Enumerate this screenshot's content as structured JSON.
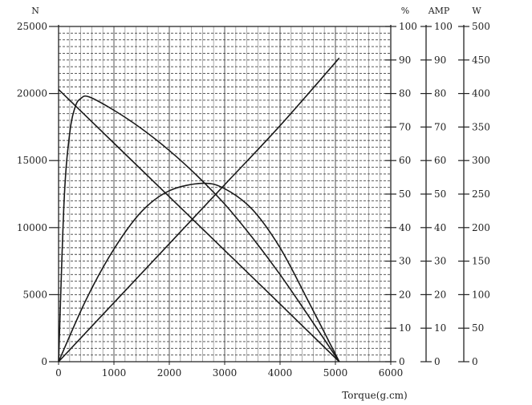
{
  "chart_data": {
    "type": "line",
    "x": {
      "label": "Torque(g.cm)",
      "range": [
        0,
        6000
      ],
      "ticks": [
        "0",
        "1000",
        "2000",
        "3000",
        "4000",
        "5000",
        "6000"
      ]
    },
    "left_axis": {
      "unit": "N",
      "range": [
        0,
        25000
      ],
      "ticks": [
        "0",
        "5000",
        "10000",
        "15000",
        "20000",
        "25000"
      ]
    },
    "right_axes": [
      {
        "unit": "%",
        "range": [
          0,
          100
        ],
        "ticks": [
          "0",
          "10",
          "20",
          "30",
          "40",
          "50",
          "60",
          "70",
          "80",
          "90",
          "100"
        ]
      },
      {
        "unit": "AMP",
        "range": [
          0,
          100
        ],
        "ticks": [
          "0",
          "10",
          "20",
          "30",
          "40",
          "50",
          "60",
          "70",
          "80",
          "90",
          "100"
        ]
      },
      {
        "unit": "W",
        "range": [
          0,
          500
        ],
        "ticks": [
          "0",
          "50",
          "100",
          "150",
          "200",
          "250",
          "300",
          "350",
          "400",
          "450",
          "500"
        ]
      }
    ],
    "grid": "on",
    "series": [
      {
        "axis": "N",
        "points": [
          [
            0,
            20300
          ],
          [
            1000,
            16300
          ],
          [
            2000,
            12300
          ],
          [
            3000,
            8300
          ],
          [
            4000,
            4300
          ],
          [
            5070,
            0
          ]
        ]
      },
      {
        "axis": "AMP",
        "points": [
          [
            0,
            0
          ],
          [
            1000,
            17.6
          ],
          [
            2000,
            35.2
          ],
          [
            3000,
            52.8
          ],
          [
            4000,
            70.4
          ],
          [
            5070,
            90.6
          ]
        ]
      },
      {
        "axis": "W",
        "points": [
          [
            0,
            0
          ],
          [
            500,
            93
          ],
          [
            1000,
            168
          ],
          [
            1500,
            224
          ],
          [
            2000,
            255
          ],
          [
            2600,
            266
          ],
          [
            3000,
            258
          ],
          [
            3500,
            227
          ],
          [
            4000,
            170
          ],
          [
            4500,
            92
          ],
          [
            5070,
            0
          ]
        ]
      },
      {
        "axis": "%",
        "points": [
          [
            0,
            0
          ],
          [
            100,
            48
          ],
          [
            200,
            68
          ],
          [
            300,
            76
          ],
          [
            400,
            78.5
          ],
          [
            550,
            79
          ],
          [
            1000,
            75
          ],
          [
            1500,
            69.5
          ],
          [
            2000,
            63
          ],
          [
            2500,
            55.5
          ],
          [
            3000,
            47
          ],
          [
            3500,
            37
          ],
          [
            4000,
            26
          ],
          [
            4500,
            14
          ],
          [
            5070,
            0
          ]
        ]
      }
    ]
  }
}
